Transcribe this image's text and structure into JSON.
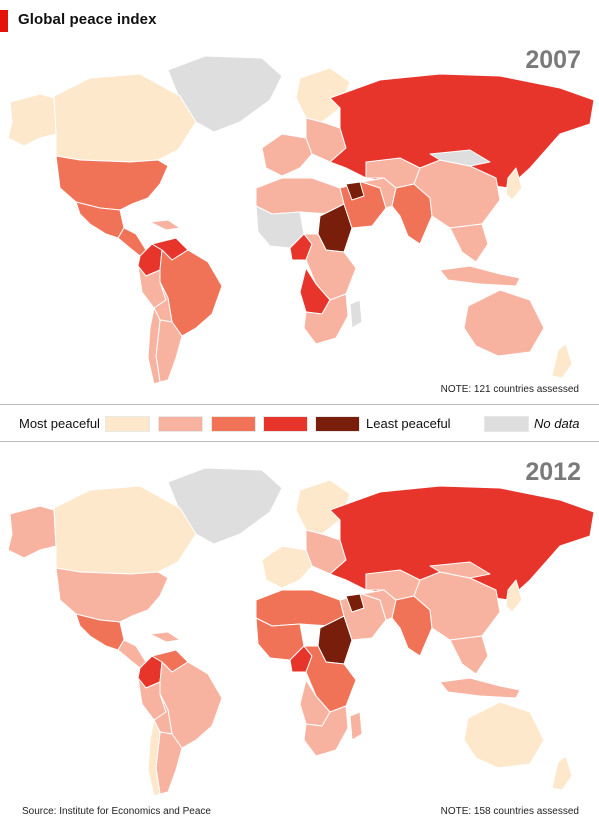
{
  "title": "Global peace index",
  "colors": {
    "accent": "#e3120b",
    "scale": [
      "#fde8cc",
      "#f7b3a0",
      "#f07257",
      "#e8352b",
      "#7a1e0c"
    ],
    "no_data": "#dedede"
  },
  "legend": {
    "most_label": "Most peaceful",
    "least_label": "Least peaceful",
    "no_data_label": "No data"
  },
  "maps": [
    {
      "year": "2007",
      "note": "NOTE: 121 countries assessed",
      "regions": {
        "greenland": 5,
        "canada": 0,
        "alaska": 0,
        "usa": 2,
        "mexico": 2,
        "central_america": 2,
        "caribbean": 1,
        "colombia": 3,
        "venezuela": 3,
        "brazil": 2,
        "peru": 1,
        "bolivia": 1,
        "argentina": 1,
        "chile": 1,
        "scandinavia": 0,
        "west_europe": 1,
        "east_europe": 1,
        "russia": 3,
        "north_africa": 1,
        "west_africa": 5,
        "nigeria": 3,
        "sudan": 4,
        "east_africa": 1,
        "angola": 3,
        "southern_africa": 1,
        "madagascar": 5,
        "middle_east": 2,
        "iraq": 4,
        "iran": 1,
        "central_asia": 1,
        "south_asia": 2,
        "china": 1,
        "mongolia": 5,
        "southeast_asia": 1,
        "japan": 0,
        "indonesia": 1,
        "australia": 1,
        "new_zealand": 0
      }
    },
    {
      "year": "2012",
      "note": "NOTE: 158 countries assessed",
      "source": "Source: Institute for Economics and Peace",
      "regions": {
        "greenland": 5,
        "canada": 0,
        "alaska": 1,
        "usa": 1,
        "mexico": 2,
        "central_america": 1,
        "caribbean": 1,
        "colombia": 3,
        "venezuela": 2,
        "brazil": 1,
        "peru": 1,
        "bolivia": 1,
        "argentina": 1,
        "chile": 0,
        "scandinavia": 0,
        "west_europe": 0,
        "east_europe": 1,
        "russia": 3,
        "north_africa": 2,
        "west_africa": 2,
        "nigeria": 3,
        "sudan": 4,
        "east_africa": 2,
        "angola": 1,
        "southern_africa": 1,
        "madagascar": 1,
        "middle_east": 1,
        "iraq": 4,
        "iran": 1,
        "central_asia": 1,
        "south_asia": 2,
        "china": 1,
        "mongolia": 1,
        "southeast_asia": 1,
        "japan": 0,
        "indonesia": 1,
        "australia": 0,
        "new_zealand": 0
      }
    }
  ]
}
